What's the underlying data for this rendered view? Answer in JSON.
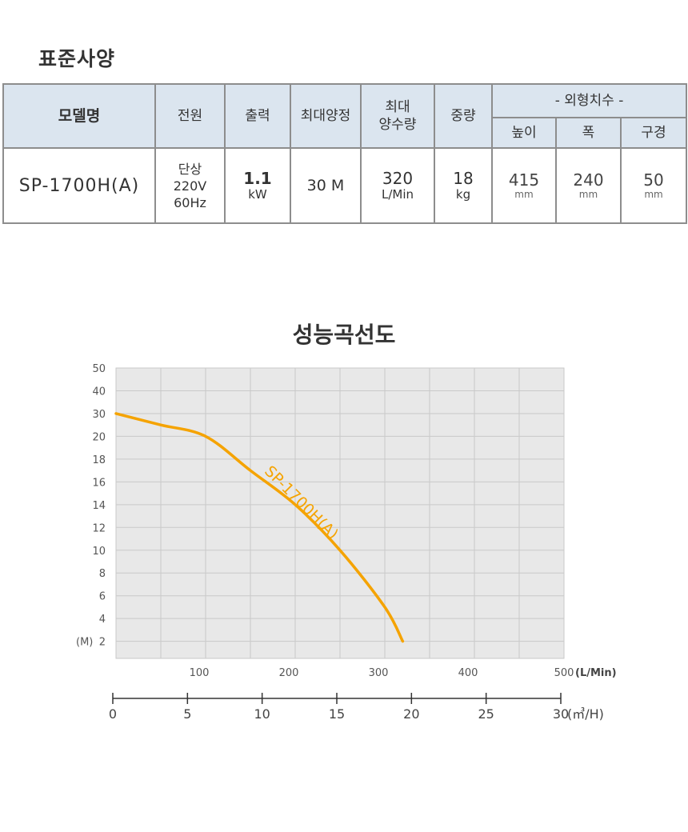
{
  "spec": {
    "section_title": "표준사양",
    "headers": {
      "model": "모델명",
      "power": "전원",
      "output": "출력",
      "max_head": "최대양정",
      "max_flow_l1": "최대",
      "max_flow_l2": "양수량",
      "weight": "중량",
      "dimensions": "- 외형치수 -",
      "height": "높이",
      "width": "폭",
      "bore": "구경"
    },
    "row": {
      "model": "SP-1700H(A)",
      "power_l1": "단상",
      "power_l2": "220V",
      "power_l3": "60Hz",
      "output_value": "1.1",
      "output_unit": "kW",
      "max_head_value": "30",
      "max_head_unit": "M",
      "max_flow_value": "320",
      "max_flow_unit": "L/Min",
      "weight_value": "18",
      "weight_unit": "kg",
      "height_value": "415",
      "height_unit": "mm",
      "width_value": "240",
      "width_unit": "mm",
      "bore_value": "50",
      "bore_unit": "mm"
    }
  },
  "chart_title": "성능곡선도",
  "chart_data": {
    "type": "line",
    "title": "성능곡선도",
    "y_unit_label": "(M)",
    "y_tick_labels": [
      "50",
      "40",
      "30",
      "20",
      "18",
      "16",
      "14",
      "12",
      "10",
      "8",
      "6",
      "4",
      "2"
    ],
    "x_ticks": [
      100,
      200,
      300,
      400,
      500
    ],
    "x_unit_label": "(L/Min)",
    "x2_ticks": [
      0,
      5,
      10,
      15,
      20,
      25,
      30
    ],
    "x2_unit_label": "(㎥/H)",
    "xlim": [
      0,
      500
    ],
    "x2lim": [
      0,
      30
    ],
    "grid": true,
    "series": [
      {
        "name": "SP-1700H(A)",
        "color": "#f5a300",
        "x": [
          0,
          50,
          100,
          150,
          200,
          250,
          300,
          320
        ],
        "y": [
          30,
          25,
          20,
          17,
          14,
          10,
          5,
          2
        ]
      }
    ],
    "colors": {
      "plot_bg": "#e8e8e8",
      "grid": "#c9c9c9",
      "axis_text": "#555555",
      "curve": "#f5a300"
    }
  }
}
